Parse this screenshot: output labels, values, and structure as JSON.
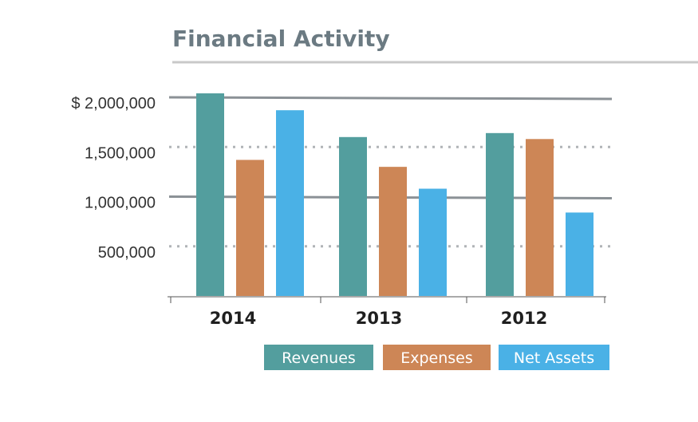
{
  "chart_data": {
    "type": "bar",
    "title": "Financial Activity",
    "categories": [
      "2014",
      "2013",
      "2012"
    ],
    "series": [
      {
        "name": "Revenues",
        "color": "#539e9e",
        "values": [
          2040000,
          1600000,
          1640000
        ]
      },
      {
        "name": "Expenses",
        "color": "#cd8656",
        "values": [
          1370000,
          1300000,
          1580000
        ]
      },
      {
        "name": "Net Assets",
        "color": "#4ab1e6",
        "values": [
          1870000,
          1080000,
          840000
        ]
      }
    ],
    "ylim": [
      0,
      2000000
    ],
    "yticks": [
      {
        "value": 2000000,
        "label": "$ 2,000,000",
        "style": "solid"
      },
      {
        "value": 1500000,
        "label": "1,500,000",
        "style": "dotted"
      },
      {
        "value": 1000000,
        "label": "1,000,000",
        "style": "solid"
      },
      {
        "value": 500000,
        "label": "500,000",
        "style": "dotted"
      }
    ],
    "legend_position": "bottom-right",
    "grid": true,
    "colors": {
      "title": "#6b7a82",
      "rule": "#c9c9c9",
      "grid_solid": "#8b9196",
      "grid_dotted": "#b0b4b7",
      "axis": "#555555"
    }
  }
}
